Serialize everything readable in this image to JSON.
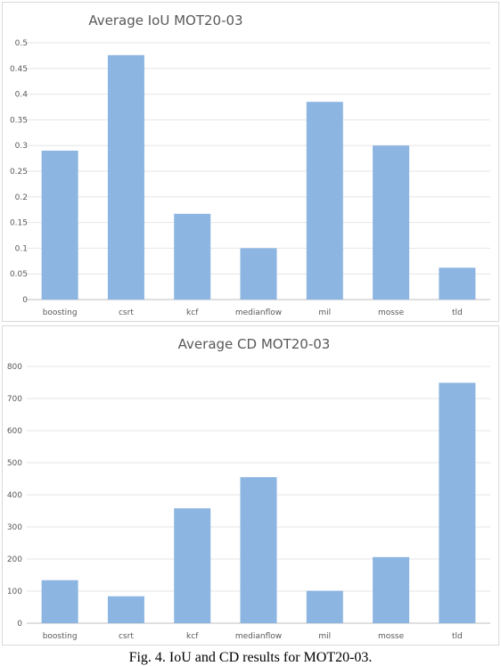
{
  "colors": {
    "bar": "#8db5e2",
    "grid": "#e6e6e6",
    "axis": "#bfbfbf",
    "text": "#595959"
  },
  "chart_data": [
    {
      "type": "bar",
      "title": "Average IoU MOT20-03",
      "categories": [
        "boosting",
        "csrt",
        "kcf",
        "medianflow",
        "mil",
        "mosse",
        "tld"
      ],
      "values": [
        0.29,
        0.476,
        0.167,
        0.1,
        0.385,
        0.3,
        0.062
      ],
      "yticks": [
        "0",
        "0.05",
        "0.1",
        "0.15",
        "0.2",
        "0.25",
        "0.3",
        "0.35",
        "0.4",
        "0.45",
        "0.5"
      ],
      "ylim": [
        0,
        0.5
      ],
      "grid": true,
      "legend": "none"
    },
    {
      "type": "bar",
      "title": "Average CD MOT20-03",
      "categories": [
        "boosting",
        "csrt",
        "kcf",
        "medianflow",
        "mil",
        "mosse",
        "tld"
      ],
      "values": [
        134,
        84,
        358,
        455,
        101,
        206,
        749
      ],
      "yticks": [
        "0",
        "100",
        "200",
        "300",
        "400",
        "500",
        "600",
        "700",
        "800"
      ],
      "ylim": [
        0,
        800
      ],
      "grid": true,
      "legend": "none"
    }
  ],
  "caption": "Fig. 4. IoU and CD results for MOT20-03."
}
